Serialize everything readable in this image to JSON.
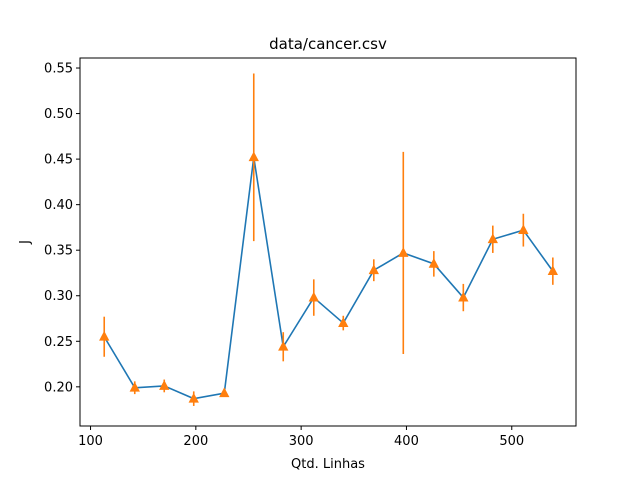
{
  "chart_data": {
    "type": "line",
    "title": "data/cancer.csv",
    "xlabel": "Qtd. Linhas",
    "ylabel": "J",
    "xlim": [
      90,
      561
    ],
    "ylim": [
      0.157,
      0.561
    ],
    "x_ticks": [
      100,
      200,
      300,
      400,
      500
    ],
    "y_ticks": [
      0.2,
      0.25,
      0.3,
      0.35,
      0.4,
      0.45,
      0.5,
      0.55
    ],
    "y_tick_labels": [
      "0.20",
      "0.25",
      "0.30",
      "0.35",
      "0.40",
      "0.45",
      "0.50",
      "0.55"
    ],
    "x_tick_labels": [
      "100",
      "200",
      "300",
      "400",
      "500"
    ],
    "grid": false,
    "colors": {
      "line": "#1f77b4",
      "markers": "#ff7f0e",
      "axes": "#000000"
    },
    "series": [
      {
        "marker": "triangle",
        "x": [
          113,
          142,
          170,
          198,
          227,
          255,
          283,
          312,
          340,
          369,
          397,
          426,
          454,
          482,
          511,
          539
        ],
        "y": [
          0.255,
          0.199,
          0.201,
          0.187,
          0.193,
          0.452,
          0.244,
          0.298,
          0.27,
          0.328,
          0.347,
          0.335,
          0.298,
          0.362,
          0.372,
          0.327
        ],
        "error": [
          0.022,
          0.007,
          0.007,
          0.008,
          0.004,
          0.092,
          0.016,
          0.02,
          0.008,
          0.012,
          0.111,
          0.014,
          0.015,
          0.015,
          0.018,
          0.015
        ]
      }
    ]
  }
}
